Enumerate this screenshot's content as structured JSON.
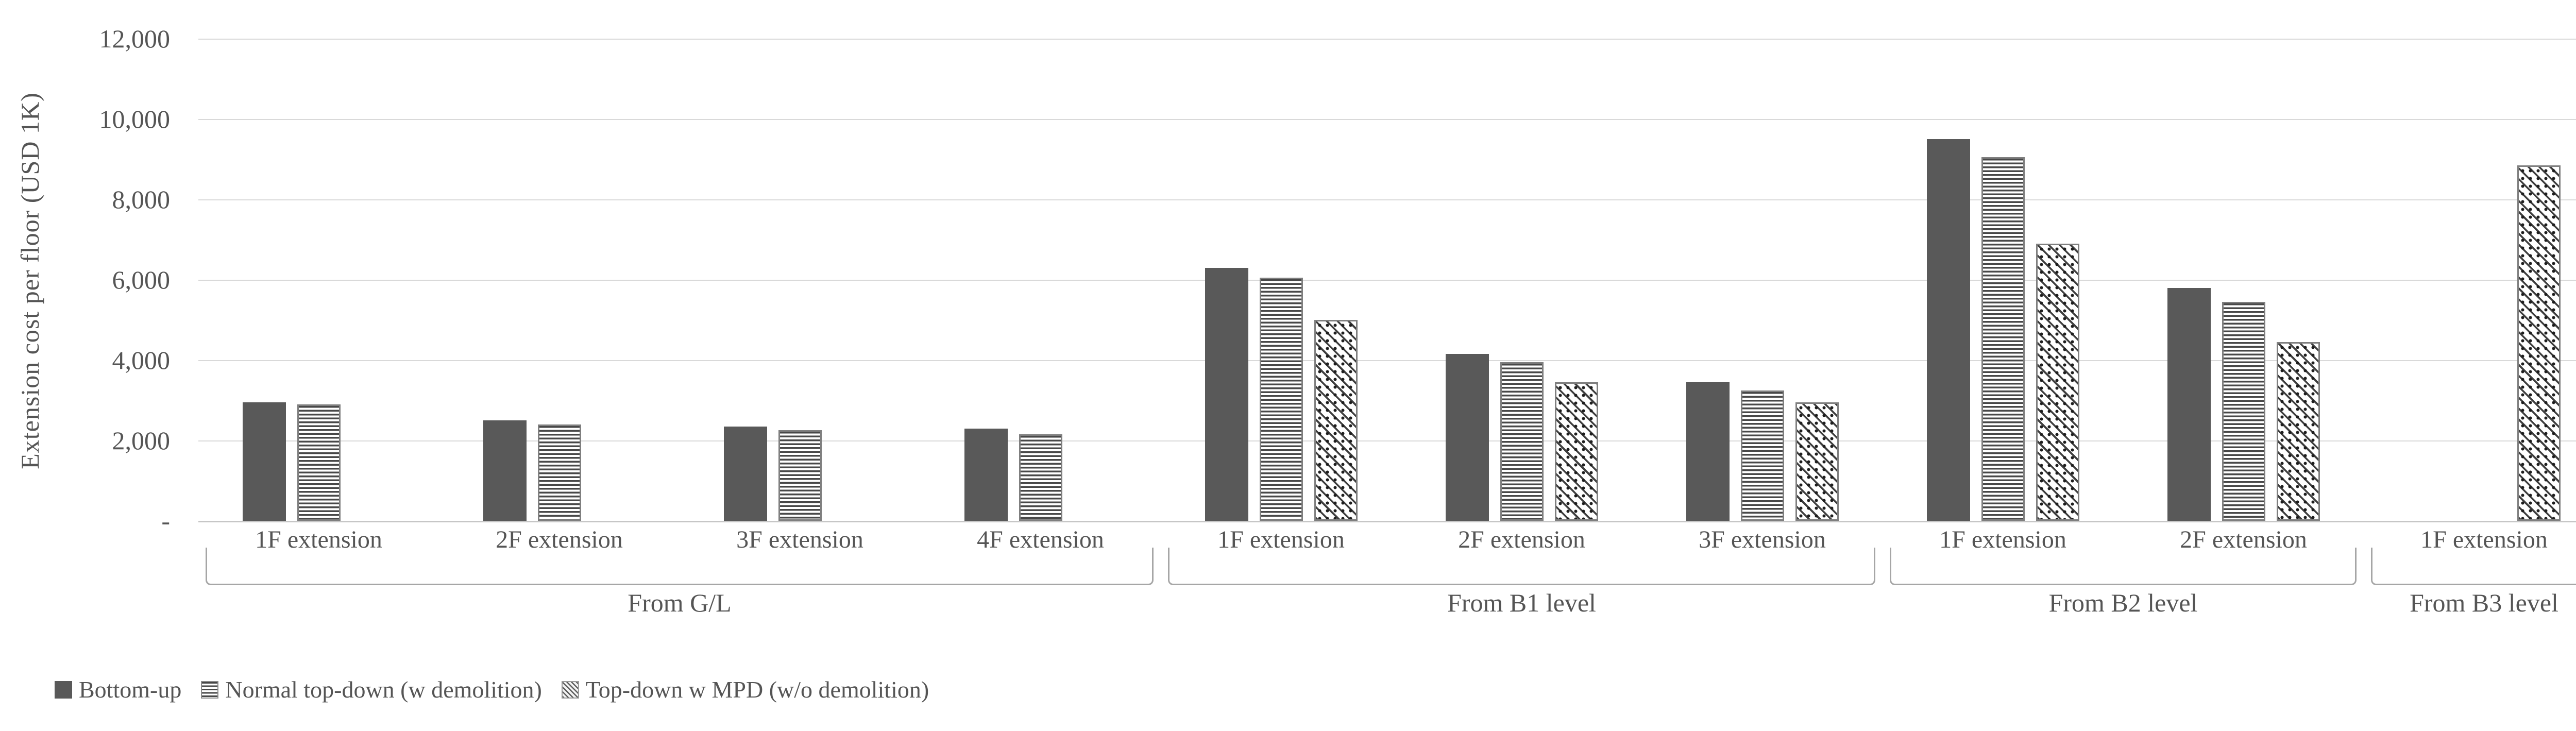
{
  "y_axis": {
    "title": "Extension cost per floor (USD 1K)",
    "ticks": [
      "12,000",
      "10,000",
      "8,000",
      "6,000",
      "4,000",
      "2,000",
      "-"
    ],
    "max": 12000,
    "tick_step": 2000
  },
  "chart_data": {
    "type": "bar",
    "title": "",
    "xlabel": "",
    "ylabel": "Extension cost per floor (USD 1K)",
    "ylim": [
      0,
      12000
    ],
    "y_tick_step": 2000,
    "grid": true,
    "legend_position": "bottom-left",
    "groups": [
      {
        "label": "From G/L",
        "categories": [
          "1F extension",
          "2F extension",
          "3F extension",
          "4F extension"
        ]
      },
      {
        "label": "From B1 level",
        "categories": [
          "1F extension",
          "2F extension",
          "3F extension"
        ]
      },
      {
        "label": "From B2 level",
        "categories": [
          "1F extension",
          "2F extension"
        ]
      },
      {
        "label": "From B3 level",
        "categories": [
          "1F extension"
        ]
      }
    ],
    "series": [
      {
        "name": "Bottom-up",
        "pattern": "solid",
        "values": [
          2950,
          2500,
          2350,
          2300,
          6300,
          4150,
          3450,
          9500,
          5800,
          null
        ]
      },
      {
        "name": "Normal top-down (w demolition)",
        "pattern": "horizontal-stripes",
        "values": [
          2900,
          2400,
          2250,
          2150,
          6050,
          3950,
          3250,
          9050,
          5450,
          null
        ]
      },
      {
        "name": "Top-down w MPD (w/o demolition)",
        "pattern": "diagonal-hatch",
        "values": [
          null,
          null,
          null,
          null,
          5000,
          3450,
          2950,
          6900,
          4450,
          8850
        ]
      }
    ]
  },
  "colors": {
    "bar_solid": "#595959",
    "pattern_line": "#484848",
    "bar_border": "#7f7f7f",
    "gridline": "#d9d9d9",
    "axis_line": "#c6c6c6",
    "bracket": "#a6a6a6",
    "text": "#555555",
    "background": "#ffffff"
  }
}
